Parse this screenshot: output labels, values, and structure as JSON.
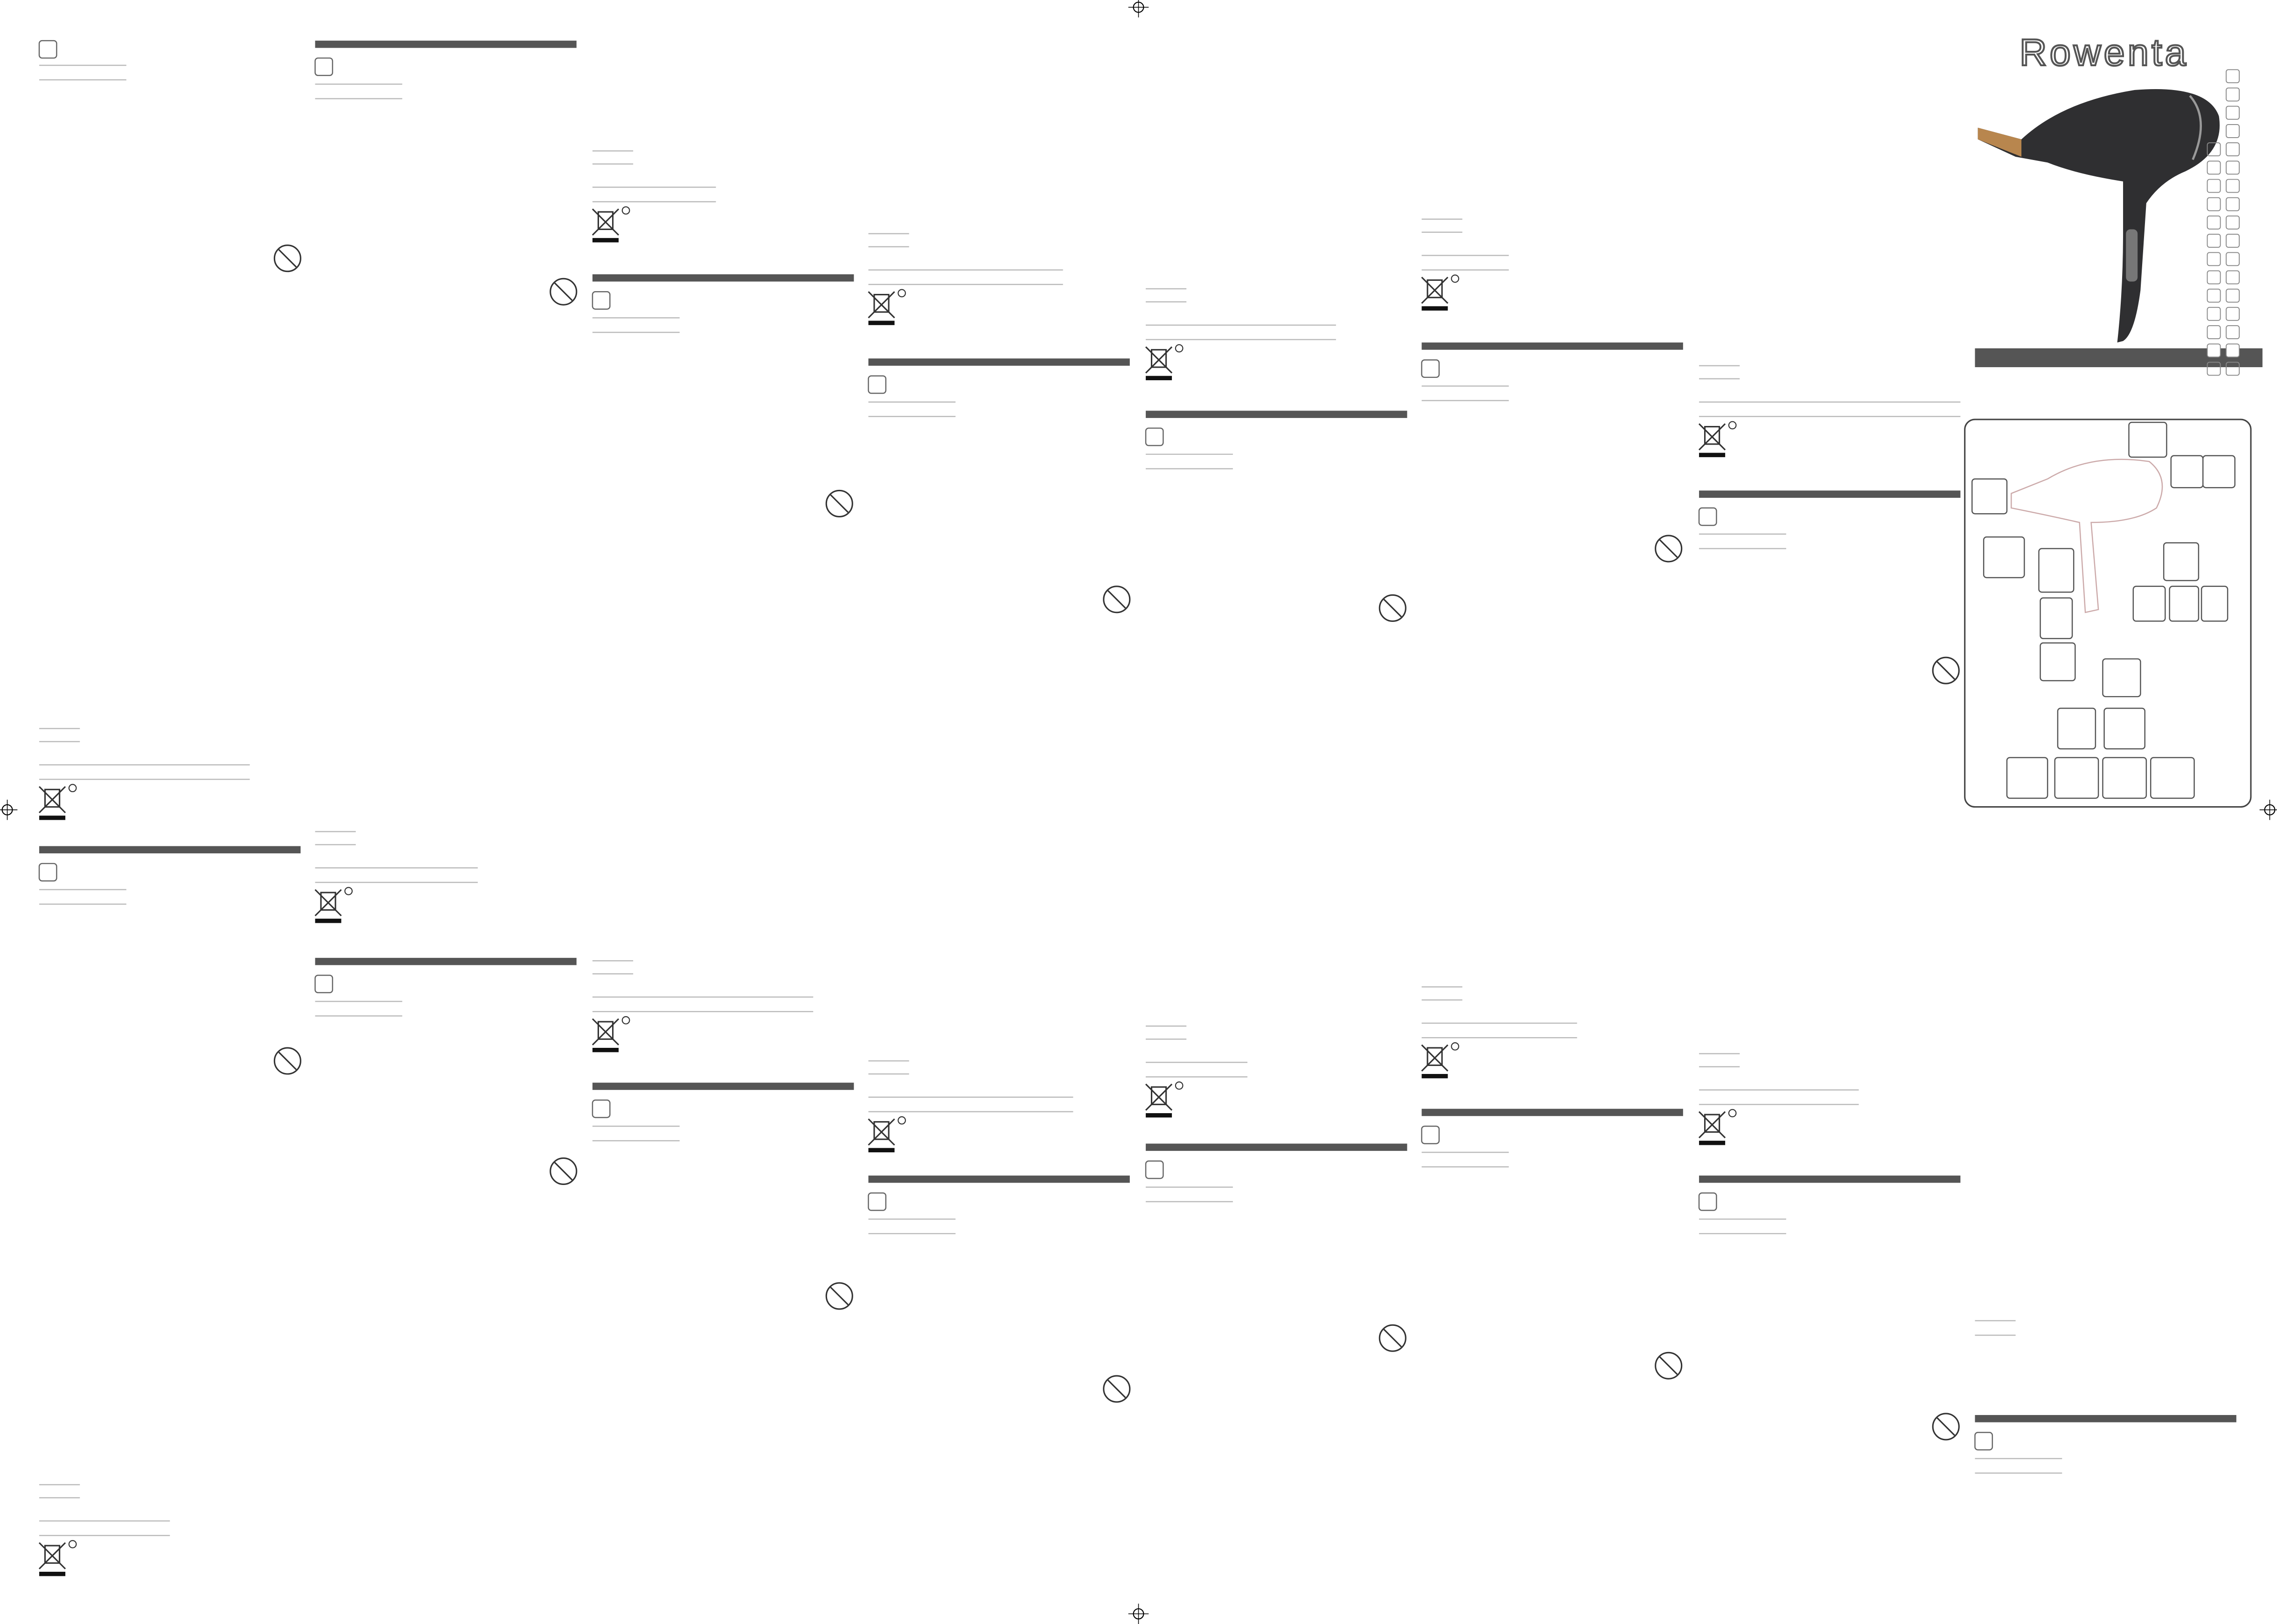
{
  "header": {
    "brand": "Rowenta"
  }
}
